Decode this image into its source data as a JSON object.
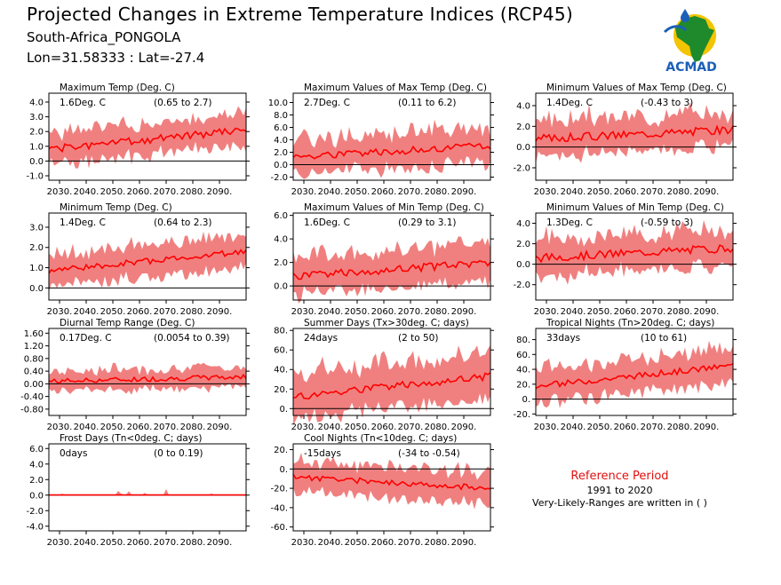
{
  "header": {
    "title": "Projected Changes in Extreme Temperature Indices (RCP45)",
    "location": "South-Africa_PONGOLA",
    "coords": "Lon=31.58333 : Lat=-27.4"
  },
  "logo": {
    "text": "ACMAD",
    "icon": "africa-map-icon"
  },
  "reference": {
    "title": "Reference Period",
    "period": "1991 to 2020",
    "note": "Very-Likely-Ranges are written in ( )"
  },
  "colors": {
    "band": "#f08080",
    "line": "#ff0000",
    "zero": "#000000",
    "ref_title": "#e01010"
  },
  "chart_data": [
    {
      "id": "txmean",
      "type": "area",
      "title": "Maximum Temp (Deg. C)",
      "summary": "1.6Deg. C",
      "range": "(0.65 to 2.7)",
      "x_start": 2026,
      "x_end": 2100,
      "xticks": [
        "2030.",
        "2040.",
        "2050.",
        "2060.",
        "2070.",
        "2080.",
        "2090."
      ],
      "yticks": [
        "4.0",
        "3.0",
        "2.0",
        "1.0",
        "0.0",
        "-1.0"
      ],
      "ylim": [
        -1.3,
        4.6
      ],
      "y_start": 0.8,
      "y_end": 2.1,
      "half_width": 0.95,
      "noise": 0.25,
      "seed": 1
    },
    {
      "id": "txx",
      "type": "area",
      "title": "Maximum Values of Max Temp (Deg. C)",
      "summary": "2.7Deg. C",
      "range": "(0.11 to 6.2)",
      "x_start": 2026,
      "x_end": 2100,
      "xticks": [
        "2030.",
        "2040.",
        "2050.",
        "2060.",
        "2070.",
        "2080.",
        "2090."
      ],
      "yticks": [
        "10.0",
        "8.0",
        "6.0",
        "4.0",
        "2.0",
        "0.0",
        "-2.0"
      ],
      "ylim": [
        -2.5,
        11.5
      ],
      "y_start": 1.3,
      "y_end": 3.0,
      "half_width": 2.5,
      "noise": 0.6,
      "seed": 2
    },
    {
      "id": "txn",
      "type": "area",
      "title": "Minimum Values of Max Temp (Deg. C)",
      "summary": "1.4Deg. C",
      "range": "(-0.43 to 3)",
      "x_start": 2026,
      "x_end": 2100,
      "xticks": [
        "2030.",
        "2040.",
        "2050.",
        "2060.",
        "2070.",
        "2080.",
        "2090."
      ],
      "yticks": [
        "4.0",
        "2.0",
        "0.0",
        "-2.0"
      ],
      "ylim": [
        -3.2,
        5.2
      ],
      "y_start": 0.8,
      "y_end": 1.7,
      "half_width": 1.5,
      "noise": 0.4,
      "seed": 3
    },
    {
      "id": "tnmean",
      "type": "area",
      "title": "Minimum Temp (Deg. C)",
      "summary": "1.4Deg. C",
      "range": "(0.64 to 2.3)",
      "x_start": 2026,
      "x_end": 2100,
      "xticks": [
        "2030.",
        "2040.",
        "2050.",
        "2060.",
        "2070.",
        "2080.",
        "2090."
      ],
      "yticks": [
        "3.0",
        "2.0",
        "1.0",
        "0.0"
      ],
      "ylim": [
        -0.6,
        3.7
      ],
      "y_start": 0.85,
      "y_end": 1.8,
      "half_width": 0.7,
      "noise": 0.15,
      "seed": 4
    },
    {
      "id": "tnx",
      "type": "area",
      "title": "Maximum Values of Min Temp (Deg. C)",
      "summary": "1.6Deg. C",
      "range": "(0.29 to 3.1)",
      "x_start": 2026,
      "x_end": 2100,
      "xticks": [
        "2030.",
        "2040.",
        "2050.",
        "2060.",
        "2070.",
        "2080.",
        "2090."
      ],
      "yticks": [
        "6.0",
        "4.0",
        "2.0",
        "0.0"
      ],
      "ylim": [
        -1.2,
        6.2
      ],
      "y_start": 0.8,
      "y_end": 2.0,
      "half_width": 1.4,
      "noise": 0.35,
      "seed": 5
    },
    {
      "id": "tnn",
      "type": "area",
      "title": "Minimum Values of Min Temp (Deg. C)",
      "summary": "1.3Deg. C",
      "range": "(-0.59 to 3)",
      "x_start": 2026,
      "x_end": 2100,
      "xticks": [
        "2030.",
        "2040.",
        "2050.",
        "2060.",
        "2070.",
        "2080.",
        "2090."
      ],
      "yticks": [
        "4.0",
        "2.0",
        "0.0",
        "-2.0"
      ],
      "ylim": [
        -3.5,
        5.0
      ],
      "y_start": 0.6,
      "y_end": 1.6,
      "half_width": 1.6,
      "noise": 0.4,
      "seed": 6
    },
    {
      "id": "dtr",
      "type": "area",
      "title": "Diurnal Temp Range (Deg. C)",
      "summary": "0.17Deg. C",
      "range": "(0.0054 to 0.39)",
      "x_start": 2026,
      "x_end": 2100,
      "xticks": [
        "2030.",
        "2040.",
        "2050.",
        "2060.",
        "2070.",
        "2080.",
        "2090."
      ],
      "yticks": [
        "1.60",
        "1.20",
        "0.80",
        "0.40",
        "0.00",
        "-0.40",
        "-0.80"
      ],
      "ylim": [
        -1.0,
        1.75
      ],
      "y_start": 0.08,
      "y_end": 0.22,
      "half_width": 0.28,
      "noise": 0.08,
      "seed": 7
    },
    {
      "id": "su",
      "type": "area",
      "title": "Summer Days (Tx>30deg. C; days)",
      "summary": "24days",
      "range": "(2 to 50)",
      "x_start": 2026,
      "x_end": 2100,
      "xticks": [
        "2030.",
        "2040.",
        "2050.",
        "2060.",
        "2070.",
        "2080.",
        "2090."
      ],
      "yticks": [
        "80.",
        "60.",
        "40.",
        "20.",
        "0."
      ],
      "ylim": [
        -7,
        82
      ],
      "y_start": 12,
      "y_end": 33,
      "half_width": 20,
      "noise": 4,
      "seed": 8
    },
    {
      "id": "tr",
      "type": "area",
      "title": "Tropical Nights (Tn>20deg. C; days)",
      "summary": "33days",
      "range": "(10 to 61)",
      "x_start": 2026,
      "x_end": 2100,
      "xticks": [
        "2030.",
        "2040.",
        "2050.",
        "2060.",
        "2070.",
        "2080.",
        "2090."
      ],
      "yticks": [
        "80.",
        "60.",
        "40.",
        "20.",
        "0.",
        "-20."
      ],
      "ylim": [
        -22,
        95
      ],
      "y_start": 17,
      "y_end": 45,
      "half_width": 20,
      "noise": 4,
      "seed": 9
    },
    {
      "id": "fd",
      "type": "area",
      "title": "Frost Days (Tn<0deg. C; days)",
      "summary": "0days",
      "range": "(0 to 0.19)",
      "x_start": 2026,
      "x_end": 2100,
      "xticks": [
        "2030.",
        "2040.",
        "2050.",
        "2060.",
        "2070.",
        "2080.",
        "2090."
      ],
      "yticks": [
        "6.0",
        "4.0",
        "2.0",
        "0.0",
        "-2.0",
        "-4.0"
      ],
      "ylim": [
        -4.6,
        6.6
      ],
      "y_start": 0,
      "y_end": 0,
      "half_width": 0.1,
      "noise": 0,
      "seed": 10,
      "spikes": true
    },
    {
      "id": "cn",
      "type": "area",
      "title": "Cool Nights (Tn<10deg. C; days)",
      "summary": "-15days",
      "range": "(-34 to -0.54)",
      "x_start": 2026,
      "x_end": 2100,
      "xticks": [
        "2030.",
        "2040.",
        "2050.",
        "2060.",
        "2070.",
        "2080.",
        "2090."
      ],
      "yticks": [
        "20.",
        "0.",
        "-20.",
        "-40.",
        "-60."
      ],
      "ylim": [
        -64,
        26
      ],
      "y_start": -8,
      "y_end": -20,
      "half_width": 14,
      "noise": 3,
      "seed": 11
    }
  ]
}
